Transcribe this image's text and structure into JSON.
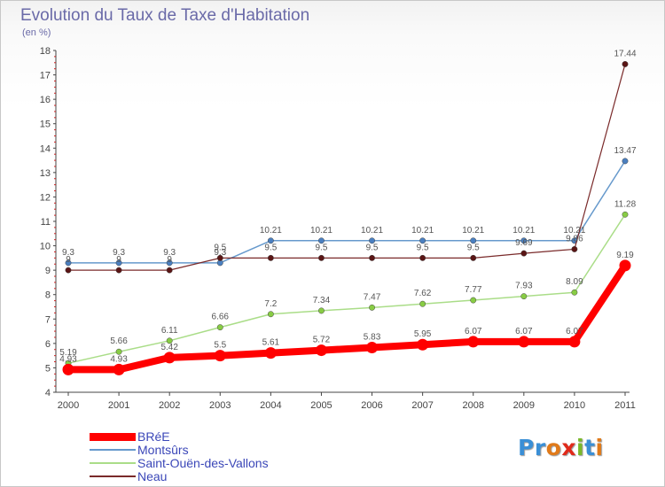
{
  "chart_data": {
    "type": "line",
    "title": "Evolution du Taux de Taxe d'Habitation",
    "subtitle": "(en %)",
    "x": [
      "2000",
      "2001",
      "2002",
      "2003",
      "2004",
      "2005",
      "2006",
      "2007",
      "2008",
      "2009",
      "2010",
      "2011"
    ],
    "y_ticks": [
      4,
      5,
      6,
      7,
      8,
      9,
      10,
      11,
      12,
      13,
      14,
      15,
      16,
      17,
      18
    ],
    "ylim": [
      4,
      18
    ],
    "grid": false,
    "legend_position": "bottom-left",
    "series": [
      {
        "name": "BRéE",
        "color": "#ff0000",
        "values": [
          4.93,
          4.93,
          5.42,
          5.5,
          5.61,
          5.72,
          5.83,
          5.95,
          6.07,
          6.07,
          6.07,
          9.19
        ],
        "labels": [
          "4.93",
          "4.93",
          "5.42",
          "5.5",
          "5.61",
          "5.72",
          "5.83",
          "5.95",
          "6.07",
          "6.07",
          "6.07",
          "9.19"
        ]
      },
      {
        "name": "Montsûrs",
        "color": "#6699cc",
        "values": [
          9.3,
          9.3,
          9.3,
          9.3,
          10.21,
          10.21,
          10.21,
          10.21,
          10.21,
          10.21,
          10.21,
          13.47
        ],
        "labels": [
          "9.3",
          "9.3",
          "9.3",
          "9.3",
          "10.21",
          "10.21",
          "10.21",
          "10.21",
          "10.21",
          "10.21",
          "10.21",
          "13.47"
        ]
      },
      {
        "name": "Saint-Ouën-des-Vallons",
        "color": "#99dd66",
        "values": [
          5.19,
          5.66,
          6.11,
          6.66,
          7.2,
          7.34,
          7.47,
          7.62,
          7.77,
          7.93,
          8.09,
          11.28
        ],
        "labels": [
          "5.19",
          "5.66",
          "6.11",
          "6.66",
          "7.2",
          "7.34",
          "7.47",
          "7.62",
          "7.77",
          "7.93",
          "8.09",
          "11.28"
        ]
      },
      {
        "name": "Neau",
        "color": "#7a2a2a",
        "values": [
          9,
          9,
          9,
          9.5,
          9.5,
          9.5,
          9.5,
          9.5,
          9.5,
          9.69,
          9.86,
          17.44
        ],
        "labels": [
          "9",
          "9",
          "9",
          "9.5",
          "9.5",
          "9.5",
          "9.5",
          "9.5",
          "9.5",
          "9.69",
          "9.86",
          "17.44"
        ]
      }
    ]
  },
  "logo": {
    "letters": [
      "P",
      "r",
      "o",
      "x",
      "i",
      "t",
      "i"
    ],
    "colors": [
      "#3a8fd6",
      "#3a8fd6",
      "#e07a1a",
      "#e02a1a",
      "#7ab82a",
      "#3a8fd6",
      "#e07a1a"
    ]
  }
}
